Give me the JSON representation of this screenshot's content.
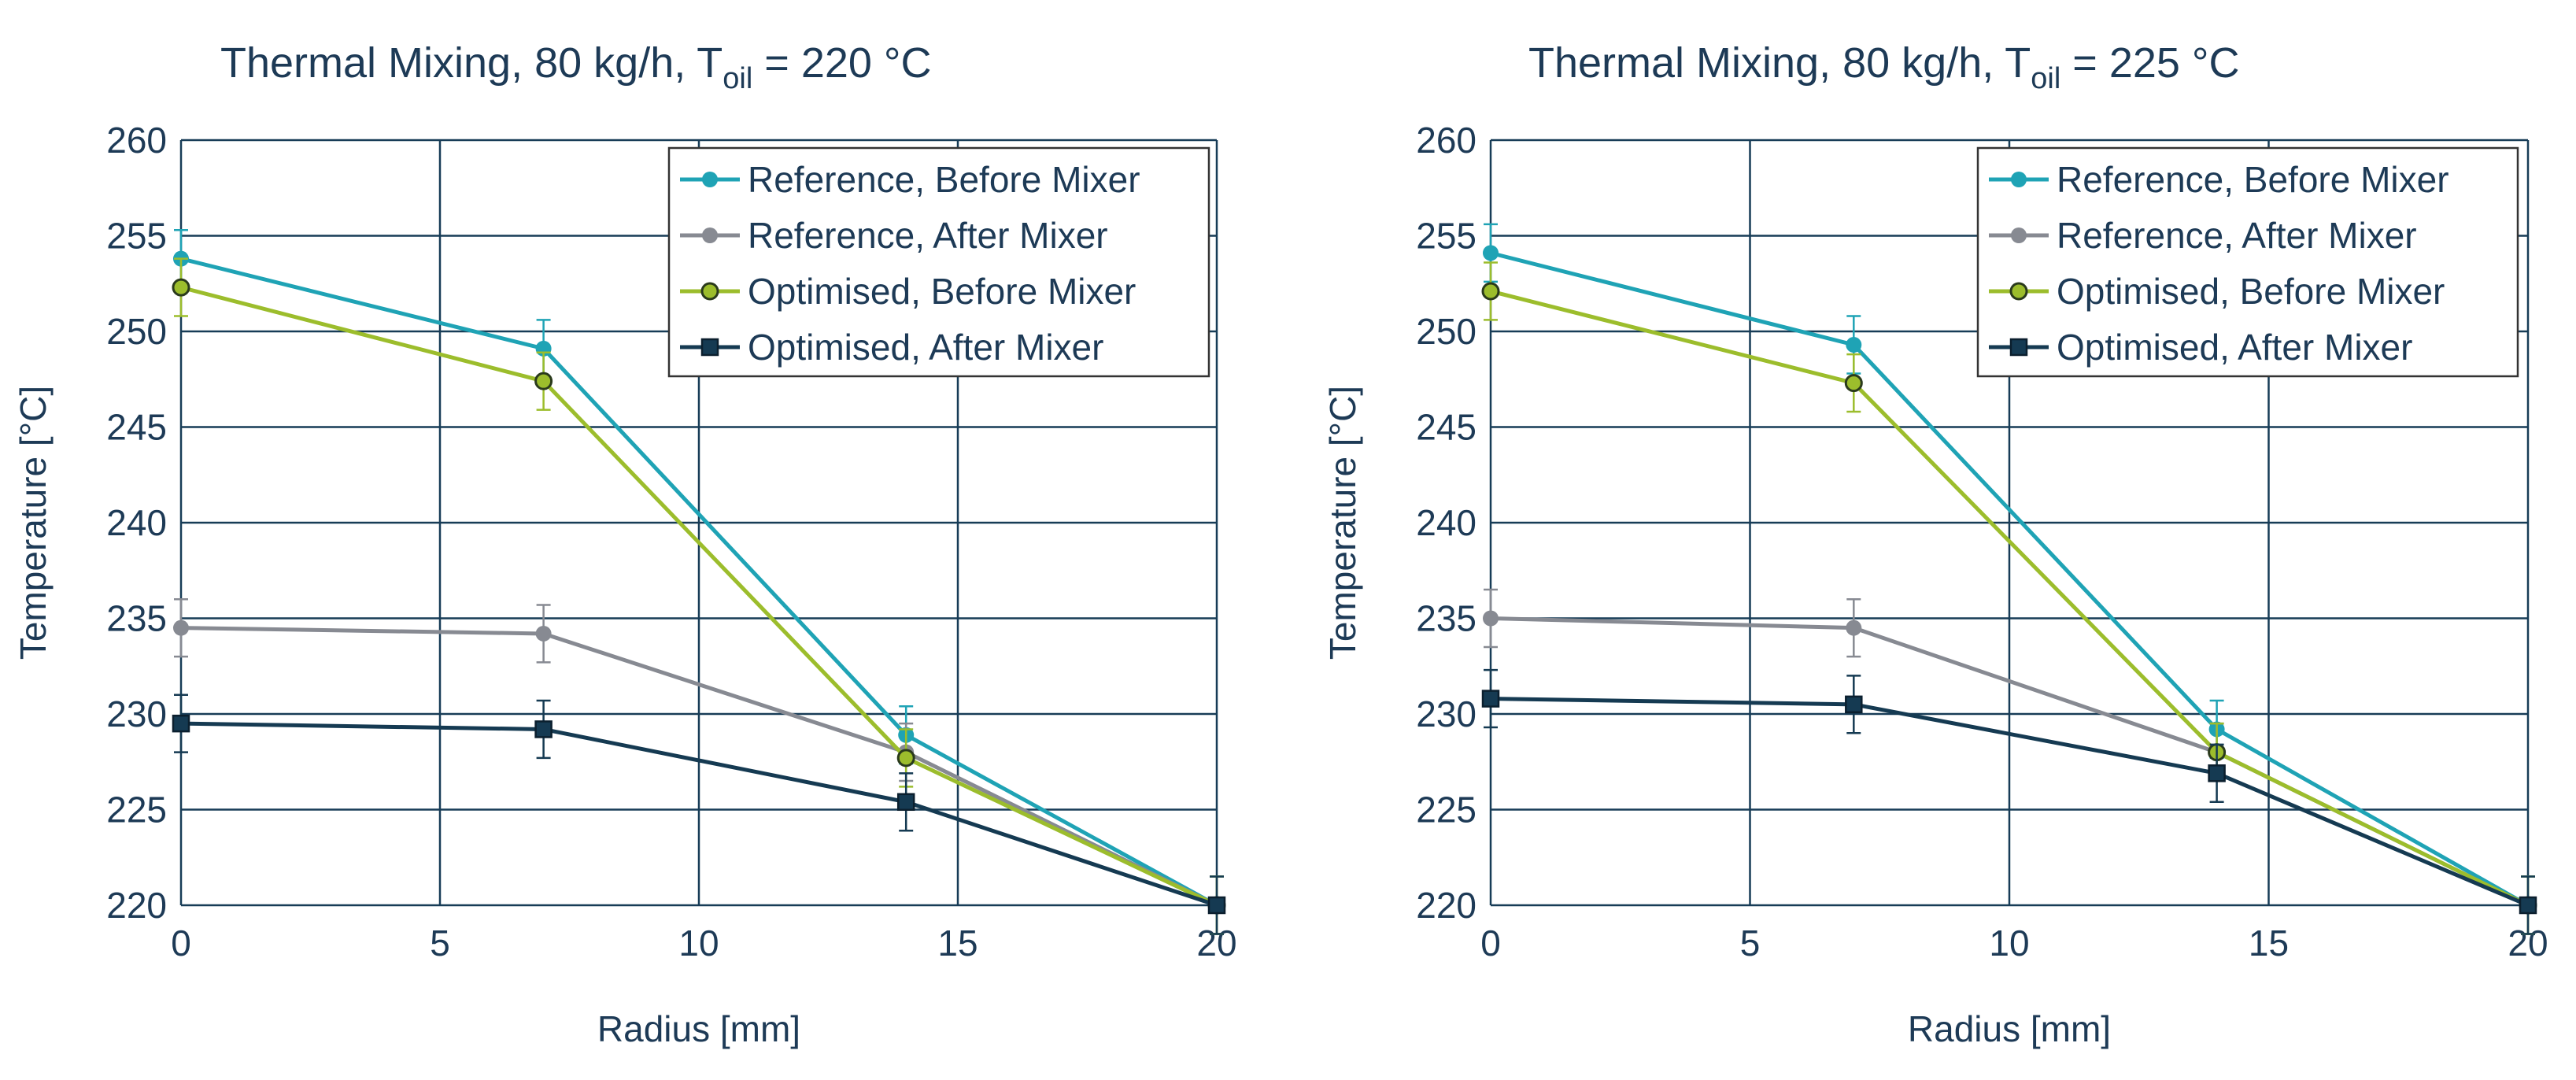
{
  "chart_data": [
    {
      "type": "line",
      "title": "Thermal Mixing, 80 kg/h, T",
      "title_sub": "oil",
      "title_suffix": " = 220 °C",
      "xlabel": "Radius [mm]",
      "ylabel": "Temperature  [°C]",
      "xlim": [
        0,
        20
      ],
      "ylim": [
        220,
        260
      ],
      "xticks": [
        0,
        5,
        10,
        15,
        20
      ],
      "yticks": [
        220,
        225,
        230,
        235,
        240,
        245,
        250,
        255,
        260
      ],
      "grid": true,
      "legend_position": "top-right",
      "x": [
        0,
        7,
        14,
        20
      ],
      "series": [
        {
          "name": "Reference, Before Mixer",
          "color": "#1fa3b5",
          "marker": "circle",
          "values": [
            253.8,
            249.1,
            228.9,
            220.0
          ],
          "errors": [
            1.5,
            1.5,
            1.5,
            1.5
          ]
        },
        {
          "name": "Reference, After Mixer",
          "color": "#878a92",
          "marker": "circle",
          "values": [
            234.5,
            234.2,
            228.0,
            220.0
          ],
          "errors": [
            1.5,
            1.5,
            1.5,
            1.5
          ]
        },
        {
          "name": "Optimised, Before Mixer",
          "color": "#9cbd2c",
          "marker": "circle-dark-edge",
          "values": [
            252.3,
            247.4,
            227.7,
            220.0
          ],
          "errors": [
            1.5,
            1.5,
            1.5,
            1.5
          ]
        },
        {
          "name": "Optimised, After Mixer",
          "color": "#153a52",
          "marker": "square",
          "values": [
            229.5,
            229.2,
            225.4,
            220.0
          ],
          "errors": [
            1.5,
            1.5,
            1.5,
            1.5
          ]
        }
      ]
    },
    {
      "type": "line",
      "title": "Thermal Mixing, 80 kg/h, T",
      "title_sub": "oil",
      "title_suffix": " = 225 °C",
      "xlabel": "Radius [mm]",
      "ylabel": "Temperature  [°C]",
      "xlim": [
        0,
        20
      ],
      "ylim": [
        220,
        260
      ],
      "xticks": [
        0,
        5,
        10,
        15,
        20
      ],
      "yticks": [
        220,
        225,
        230,
        235,
        240,
        245,
        250,
        255,
        260
      ],
      "grid": true,
      "legend_position": "top-right",
      "x": [
        0,
        7,
        14,
        20
      ],
      "series": [
        {
          "name": "Reference, Before Mixer",
          "color": "#1fa3b5",
          "marker": "circle",
          "values": [
            254.1,
            249.3,
            229.2,
            220.0
          ],
          "errors": [
            1.5,
            1.5,
            1.5,
            1.5
          ]
        },
        {
          "name": "Reference, After Mixer",
          "color": "#878a92",
          "marker": "circle",
          "values": [
            235.0,
            234.5,
            228.0,
            220.0
          ],
          "errors": [
            1.5,
            1.5,
            1.5,
            1.5
          ]
        },
        {
          "name": "Optimised, Before Mixer",
          "color": "#9cbd2c",
          "marker": "circle-dark-edge",
          "values": [
            252.1,
            247.3,
            228.0,
            220.0
          ],
          "errors": [
            1.5,
            1.5,
            1.5,
            1.5
          ]
        },
        {
          "name": "Optimised, After Mixer",
          "color": "#153a52",
          "marker": "square",
          "values": [
            230.8,
            230.5,
            226.9,
            220.0
          ],
          "errors": [
            1.5,
            1.5,
            1.5,
            1.5
          ]
        }
      ]
    }
  ]
}
